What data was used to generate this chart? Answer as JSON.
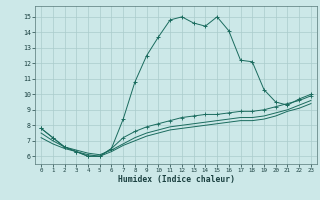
{
  "title": "",
  "xlabel": "Humidex (Indice chaleur)",
  "bg_color": "#cce8e8",
  "line_color": "#1a6b5e",
  "grid_color": "#aacccc",
  "x_values": [
    0,
    1,
    2,
    3,
    4,
    5,
    6,
    7,
    8,
    9,
    10,
    11,
    12,
    13,
    14,
    15,
    16,
    17,
    18,
    19,
    20,
    21,
    22,
    23
  ],
  "y_main": [
    7.8,
    7.2,
    6.6,
    6.3,
    6.0,
    6.0,
    6.5,
    8.4,
    10.8,
    12.5,
    13.7,
    14.8,
    15.0,
    14.6,
    14.4,
    15.0,
    14.1,
    12.2,
    12.1,
    10.3,
    9.5,
    9.3,
    9.7,
    10.0
  ],
  "y_line2": [
    7.8,
    7.2,
    6.6,
    6.3,
    6.0,
    6.0,
    6.5,
    7.2,
    7.6,
    7.9,
    8.1,
    8.3,
    8.5,
    8.6,
    8.7,
    8.7,
    8.8,
    8.9,
    8.9,
    9.0,
    9.2,
    9.4,
    9.6,
    9.9
  ],
  "y_line3": [
    7.5,
    7.0,
    6.6,
    6.4,
    6.2,
    6.1,
    6.4,
    6.8,
    7.2,
    7.5,
    7.7,
    7.9,
    8.0,
    8.1,
    8.2,
    8.3,
    8.4,
    8.5,
    8.5,
    8.6,
    8.8,
    9.0,
    9.3,
    9.6
  ],
  "y_line4": [
    7.2,
    6.8,
    6.5,
    6.3,
    6.1,
    6.0,
    6.3,
    6.7,
    7.0,
    7.3,
    7.5,
    7.7,
    7.8,
    7.9,
    8.0,
    8.1,
    8.2,
    8.3,
    8.3,
    8.4,
    8.6,
    8.9,
    9.1,
    9.4
  ],
  "xlim": [
    -0.5,
    23.5
  ],
  "ylim": [
    5.5,
    15.7
  ],
  "yticks": [
    6,
    7,
    8,
    9,
    10,
    11,
    12,
    13,
    14,
    15
  ],
  "xticks": [
    0,
    1,
    2,
    3,
    4,
    5,
    6,
    7,
    8,
    9,
    10,
    11,
    12,
    13,
    14,
    15,
    16,
    17,
    18,
    19,
    20,
    21,
    22,
    23
  ]
}
